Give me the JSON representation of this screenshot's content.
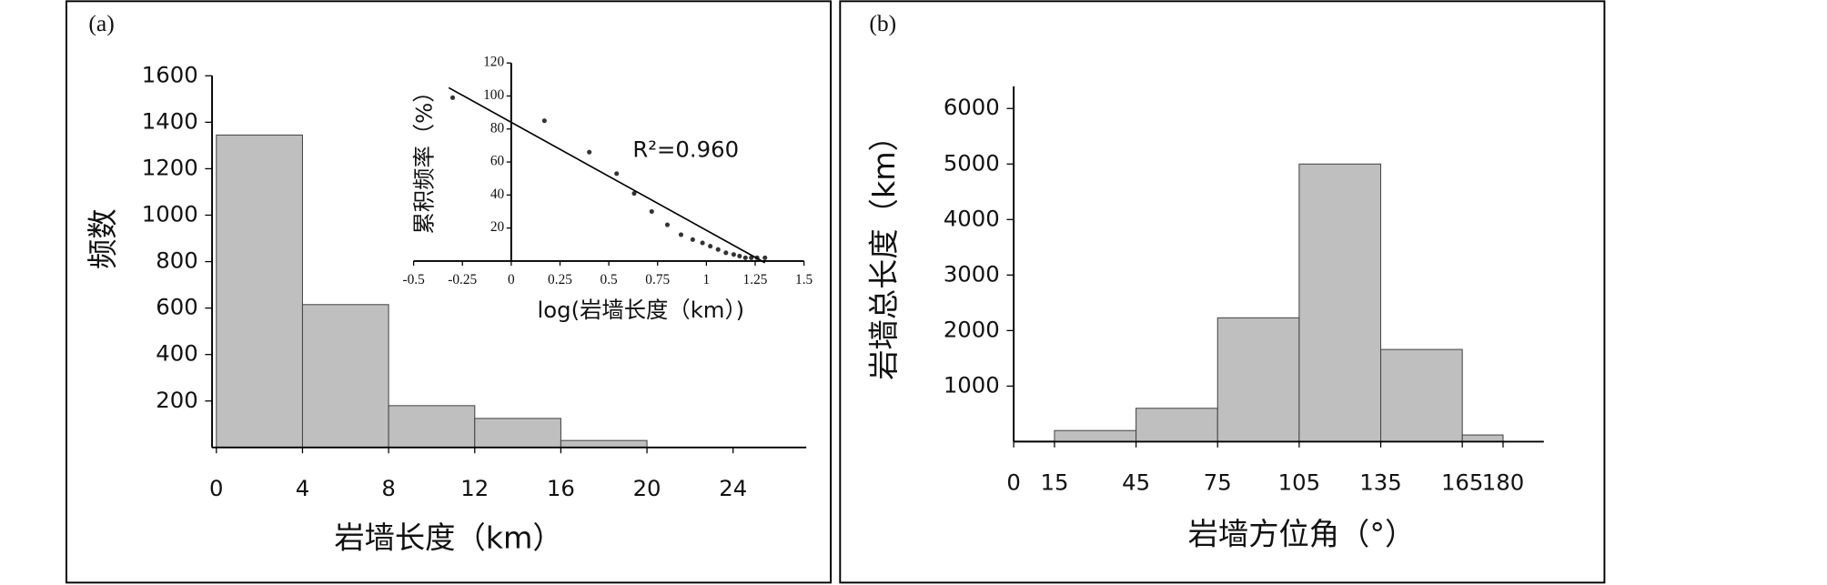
{
  "chart_data": [
    {
      "type": "histogram",
      "panel": "(a)",
      "bins": [
        0,
        4,
        8,
        12,
        16,
        20
      ],
      "values": [
        1345,
        615,
        180,
        125,
        30
      ],
      "color": "#bfbfbf",
      "xlabel": "岩墙长度（km）",
      "ylabel": "频数",
      "xlim": [
        -0.2,
        27.4
      ],
      "ylim": [
        0,
        1600
      ],
      "xticks": [
        0,
        4,
        8,
        12,
        16,
        20,
        24
      ],
      "yticks": [
        200,
        400,
        600,
        800,
        1000,
        1200,
        1400,
        1600
      ]
    },
    {
      "type": "scatter",
      "x": [
        -0.3,
        0.17,
        0.4,
        0.54,
        0.63,
        0.72,
        0.8,
        0.87,
        0.93,
        0.98,
        1.02,
        1.06,
        1.1,
        1.14,
        1.17,
        1.2,
        1.23,
        1.26,
        1.3
      ],
      "values": [
        99,
        85,
        66,
        53,
        41,
        30,
        22,
        16,
        13,
        11,
        9,
        7,
        5,
        4,
        3,
        2,
        2,
        2,
        2
      ],
      "fit": {
        "x": [
          -0.32,
          1.3
        ],
        "values": [
          105,
          -1
        ]
      },
      "annotation": "R²=0.960",
      "xlabel": "log(岩墙长度（km）)",
      "ylabel": "累积频率（%）",
      "xlim": [
        -0.5,
        1.5
      ],
      "ylim": [
        0,
        120
      ],
      "xticks": [
        -0.5,
        -0.25,
        0,
        0.25,
        0.5,
        0.75,
        1,
        1.25,
        1.5
      ],
      "yticks": [
        20,
        40,
        60,
        80,
        100,
        120
      ]
    },
    {
      "type": "histogram",
      "panel": "(b)",
      "bins": [
        0,
        15,
        45,
        75,
        105,
        135,
        165,
        180
      ],
      "values": [
        10,
        200,
        600,
        2230,
        5000,
        1660,
        120
      ],
      "color": "#bfbfbf",
      "xlabel": "岩墙方位角（°）",
      "ylabel": "岩墙总长度（km）",
      "xlim": [
        0,
        195
      ],
      "ylim": [
        0,
        6400
      ],
      "xticks": [
        0,
        15,
        45,
        75,
        105,
        135,
        165,
        180
      ],
      "yticks": [
        1000,
        2000,
        3000,
        4000,
        5000,
        6000
      ]
    }
  ]
}
